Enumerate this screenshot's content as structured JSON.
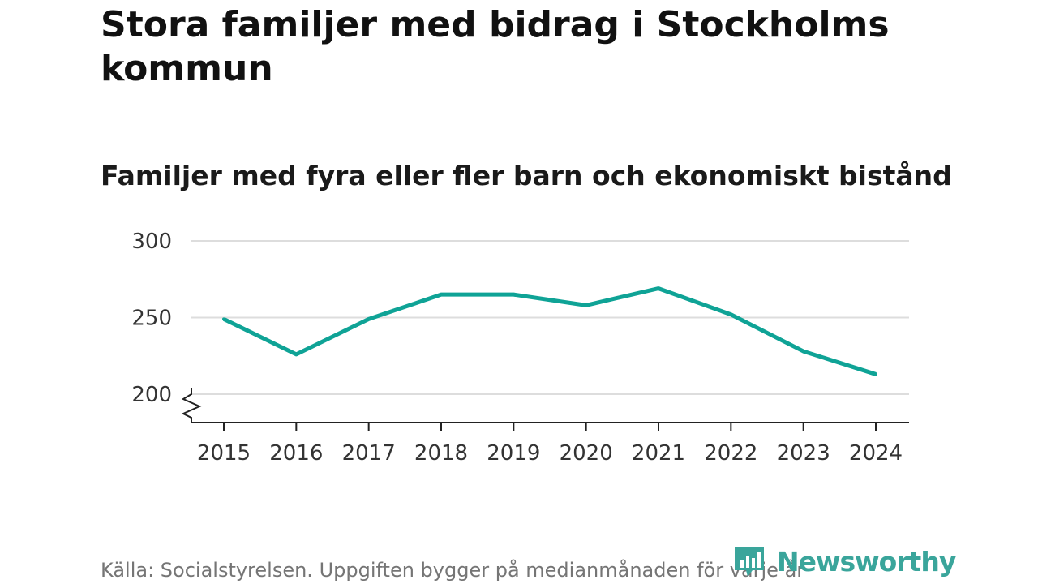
{
  "title": "Stora familjer med bidrag i Stockholms kommun",
  "subtitle": "Familjer med fyra eller fler barn och ekonomiskt bistånd",
  "footer": {
    "source": "Källa: Socialstyrelsen. Uppgiften bygger på medianmånaden för varje år"
  },
  "logo": {
    "text": "Newsworthy",
    "icon": "newsworthy-logo-icon",
    "color": "#3aa59b"
  },
  "chart_data": {
    "type": "line",
    "x": [
      "2015",
      "2016",
      "2017",
      "2018",
      "2019",
      "2020",
      "2021",
      "2022",
      "2023",
      "2024"
    ],
    "series": [
      {
        "values": [
          249,
          226,
          249,
          265,
          265,
          258,
          269,
          252,
          228,
          213
        ],
        "color": "#0fa396"
      }
    ],
    "ylim": [
      200,
      300
    ],
    "yticks": [
      "200",
      "250",
      "300"
    ],
    "grid": true,
    "axis_break": true,
    "xlabel": "",
    "ylabel": ""
  }
}
